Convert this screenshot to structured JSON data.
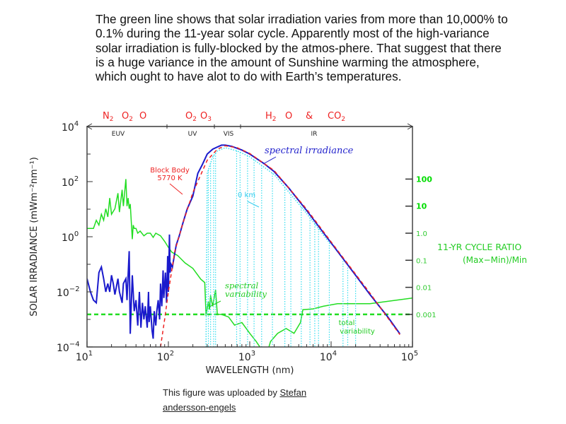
{
  "intro_text": "The green line shows that solar irradiation varies from more than 10,000% to 0.1% during the 11-year solar cycle. Apparently most of the high-variance solar irradiation is fully-blocked by the atmos-phere. That suggest that there is a huge variance in the amount of Sunshine warming the atmosphere, which ought to have alot to do with Earth’s temperatures.",
  "caption": {
    "prefix": "This figure was uploaded by ",
    "author_link": "Stefan andersson-engels"
  },
  "chart_data": {
    "type": "line",
    "xlabel": "WAVELENGTH (nm)",
    "ylabel": "SOLAR IRRADIANCE (mWm⁻²nm⁻¹)",
    "y2label": [
      "11-YR CYCLE RATIO",
      "(Max−Min)/Min"
    ],
    "x_scale": "log",
    "y_scale": "log",
    "y2_scale": "log",
    "xlim": [
      10,
      100000
    ],
    "ylim": [
      0.0001,
      10000
    ],
    "x_ticks": [
      {
        "b": "10",
        "e": "1"
      },
      {
        "b": "10",
        "e": "2"
      },
      {
        "b": "10",
        "e": "3"
      },
      {
        "b": "10",
        "e": "4"
      },
      {
        "b": "10",
        "e": "5"
      }
    ],
    "y_ticks": [
      {
        "b": "10",
        "e": "4"
      },
      {
        "b": "10",
        "e": "2"
      },
      {
        "b": "10",
        "e": "0"
      },
      {
        "b": "10",
        "e": "−2"
      },
      {
        "b": "10",
        "e": "−4"
      }
    ],
    "y2_ticks": [
      "100",
      "10",
      "1.0",
      "0.1",
      "0.01",
      "0.001"
    ],
    "regions": [
      "EUV",
      "UV",
      "VIS",
      "IR"
    ],
    "absorbers": [
      {
        "parts": [
          [
            "N",
            "2"
          ],
          [
            "O",
            "2"
          ],
          [
            "O",
            ""
          ]
        ]
      },
      {
        "parts": [
          [
            "O",
            "2"
          ],
          [
            "O",
            "3"
          ]
        ]
      },
      {
        "parts": [
          [
            "H",
            "2"
          ],
          [
            "O",
            ""
          ],
          [
            "&",
            ""
          ],
          [
            "CO",
            "2"
          ]
        ]
      }
    ],
    "annotations": {
      "spectral_irradiance": "spectral irradiance",
      "blackbody": [
        "Block Body",
        "5770 K"
      ],
      "zero_km": "0 km",
      "spectral_variability": [
        "spectral",
        "variability"
      ],
      "total_variability": [
        "total",
        "variability"
      ]
    },
    "colors": {
      "irradiance": "#1a1acc",
      "blackbody": "#ee2222",
      "zero_km": "#33ddee",
      "variability": "#22dd22",
      "axis_label_green": "#00dd00"
    },
    "series": [
      {
        "name": "spectral irradiance",
        "axis": "left",
        "style": "solid",
        "points": [
          [
            10,
            0.03
          ],
          [
            11,
            0.01
          ],
          [
            12,
            0.005
          ],
          [
            13,
            0.004
          ],
          [
            14,
            0.05
          ],
          [
            15,
            0.08
          ],
          [
            16,
            0.03
          ],
          [
            17,
            0.01
          ],
          [
            18,
            0.02
          ],
          [
            19,
            0.01
          ],
          [
            20,
            0.04
          ],
          [
            21,
            0.02
          ],
          [
            22,
            0.008
          ],
          [
            24,
            0.03
          ],
          [
            25,
            0.01
          ],
          [
            27,
            0.004
          ],
          [
            28,
            0.02
          ],
          [
            30,
            0.03
          ],
          [
            31,
            0.005
          ],
          [
            33,
            0.3
          ],
          [
            34,
            0.0003
          ],
          [
            36,
            0.04
          ],
          [
            38,
            0.002
          ],
          [
            40,
            0.005
          ],
          [
            42,
            0.0006
          ],
          [
            44,
            0.01
          ],
          [
            46,
            0.0005
          ],
          [
            48,
            0.004
          ],
          [
            50,
            0.001
          ],
          [
            52,
            0.003
          ],
          [
            55,
            0.0005
          ],
          [
            57,
            0.01
          ],
          [
            58,
            0.0008
          ],
          [
            60,
            0.003
          ],
          [
            63,
            0.0004
          ],
          [
            65,
            0.0002
          ],
          [
            67,
            0.002
          ],
          [
            70,
            0.0006
          ],
          [
            72,
            0.002
          ],
          [
            75,
            0.005
          ],
          [
            78,
            0.001
          ],
          [
            80,
            0.02
          ],
          [
            83,
            0.003
          ],
          [
            86,
            0.06
          ],
          [
            88,
            0.006
          ],
          [
            92,
            0.05
          ],
          [
            95,
            0.004
          ],
          [
            98,
            0.2
          ],
          [
            100,
            0.01
          ],
          [
            103,
            1.2
          ],
          [
            105,
            0.05
          ],
          [
            108,
            0.1
          ],
          [
            112,
            0.08
          ],
          [
            118,
            0.2
          ],
          [
            125,
            0.5
          ],
          [
            135,
            1
          ],
          [
            150,
            3
          ],
          [
            170,
            10
          ],
          [
            200,
            30
          ],
          [
            230,
            200
          ],
          [
            260,
            400
          ],
          [
            300,
            1000
          ],
          [
            350,
            1500
          ],
          [
            400,
            1800
          ],
          [
            450,
            2100
          ],
          [
            500,
            2100
          ],
          [
            600,
            1900
          ],
          [
            800,
            1400
          ],
          [
            1000,
            1000
          ],
          [
            1500,
            450
          ],
          [
            2000,
            230
          ],
          [
            3000,
            60
          ],
          [
            5000,
            9
          ],
          [
            10000,
            0.6
          ],
          [
            20000,
            0.04
          ],
          [
            30000,
            0.008
          ],
          [
            50000,
            0.0012
          ],
          [
            70000,
            0.0003
          ]
        ]
      },
      {
        "name": "Block Body 5770 K",
        "axis": "left",
        "style": "dashed",
        "points": [
          [
            80,
            0.0001
          ],
          [
            90,
            0.001
          ],
          [
            100,
            0.01
          ],
          [
            120,
            0.3
          ],
          [
            150,
            3
          ],
          [
            200,
            40
          ],
          [
            300,
            600
          ],
          [
            400,
            1500
          ],
          [
            500,
            2000
          ],
          [
            700,
            1700
          ],
          [
            1000,
            1050
          ],
          [
            2000,
            250
          ],
          [
            5000,
            10
          ],
          [
            10000,
            0.65
          ],
          [
            30000,
            0.009
          ],
          [
            70000,
            0.00028
          ]
        ]
      },
      {
        "name": "0 km",
        "axis": "left",
        "style": "dotted",
        "points": [
          [
            290,
            0.0001
          ],
          [
            300,
            200
          ],
          [
            350,
            800
          ],
          [
            400,
            1300
          ],
          [
            500,
            1700
          ],
          [
            700,
            1300
          ],
          [
            1000,
            800
          ],
          [
            2000,
            180
          ],
          [
            5000,
            7
          ],
          [
            10000,
            0.5
          ]
        ],
        "absorption_bands": [
          290,
          310,
          330,
          360,
          380,
          690,
          760,
          940,
          1130,
          1400,
          1900,
          2700,
          3200,
          4300,
          5500,
          6300,
          7000,
          9500,
          14000,
          16000,
          20000
        ]
      },
      {
        "name": "spectral variability",
        "axis": "right",
        "style": "solid",
        "points": [
          [
            10,
            1.5
          ],
          [
            12,
            1.5
          ],
          [
            13,
            3
          ],
          [
            14,
            2
          ],
          [
            15,
            5
          ],
          [
            16,
            3
          ],
          [
            17,
            8
          ],
          [
            18,
            4
          ],
          [
            19,
            20
          ],
          [
            20,
            5
          ],
          [
            22,
            8
          ],
          [
            24,
            30
          ],
          [
            25,
            6
          ],
          [
            27,
            40
          ],
          [
            28,
            10
          ],
          [
            30,
            100
          ],
          [
            31,
            10
          ],
          [
            32,
            20
          ],
          [
            33,
            8
          ],
          [
            34,
            12
          ],
          [
            36,
            0.6
          ],
          [
            37,
            2
          ],
          [
            38,
            1.5
          ],
          [
            40,
            1.5
          ],
          [
            42,
            1
          ],
          [
            45,
            1.2
          ],
          [
            50,
            0.8
          ],
          [
            55,
            1
          ],
          [
            60,
            1
          ],
          [
            65,
            0.7
          ],
          [
            70,
            1
          ],
          [
            80,
            0.8
          ],
          [
            90,
            0.5
          ],
          [
            100,
            0.3
          ],
          [
            110,
            0.2
          ],
          [
            130,
            0.15
          ],
          [
            160,
            0.08
          ],
          [
            200,
            0.05
          ],
          [
            250,
            0.02
          ],
          [
            280,
            0.015
          ],
          [
            290,
            0.0009
          ],
          [
            310,
            0.003
          ],
          [
            320,
            0.0015
          ],
          [
            330,
            0.005
          ],
          [
            350,
            0.002
          ],
          [
            380,
            0.008
          ],
          [
            400,
            0.001
          ],
          [
            450,
            0.001
          ],
          [
            550,
            0.0008
          ],
          [
            650,
            0.0004
          ],
          [
            800,
            0.0005
          ],
          [
            1000,
            0.0002
          ],
          [
            1200,
            0.0001
          ],
          [
            1400,
            5e-05
          ],
          [
            1600,
            3e-05
          ],
          [
            1800,
            0.0001
          ],
          [
            2200,
            0.0002
          ],
          [
            2800,
            0.0003
          ],
          [
            3500,
            0.0002
          ],
          [
            4200,
            0.0005
          ],
          [
            4500,
            0.0015
          ],
          [
            6000,
            0.0016
          ],
          [
            8000,
            0.002
          ],
          [
            12000,
            0.0025
          ],
          [
            30000,
            0.0025
          ],
          [
            100000,
            0.004
          ]
        ]
      },
      {
        "name": "total variability",
        "axis": "right",
        "style": "dashed",
        "points": [
          [
            10,
            0.001
          ],
          [
            100000,
            0.001
          ]
        ]
      }
    ]
  }
}
